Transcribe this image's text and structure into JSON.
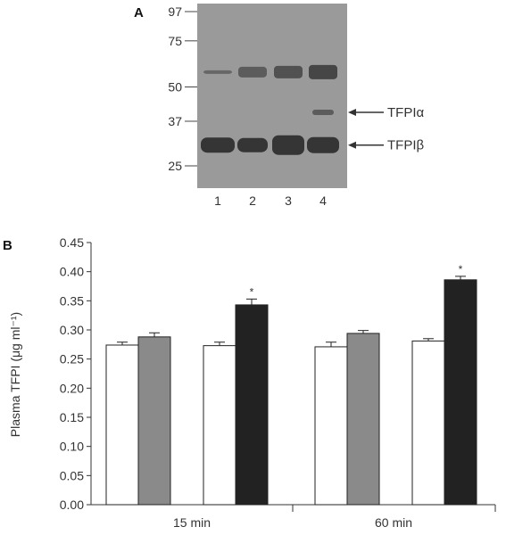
{
  "panel_a": {
    "label": "A",
    "mw_markers": [
      {
        "label": "97",
        "kda": 97
      },
      {
        "label": "75",
        "kda": 75
      },
      {
        "label": "50",
        "kda": 50
      },
      {
        "label": "37",
        "kda": 37
      },
      {
        "label": "25",
        "kda": 25
      }
    ],
    "lanes": [
      "1",
      "2",
      "3",
      "4"
    ],
    "band_labels": {
      "alpha": "TFPIα",
      "beta": "TFPIβ"
    },
    "colors": {
      "blot_bg": "#9a9a9a",
      "band": "#2a2a2a",
      "arrow": "#333333"
    }
  },
  "chart_data": {
    "type": "bar",
    "panel_label": "B",
    "title": "",
    "xlabel": "",
    "ylabel": "Plasma TFPI (μg ml⁻¹)",
    "ylim": [
      0,
      0.45
    ],
    "yticks": [
      "0.00",
      "0.05",
      "0.10",
      "0.15",
      "0.20",
      "0.25",
      "0.30",
      "0.35",
      "0.40",
      "0.45"
    ],
    "categories": [
      "15 min",
      "60 min"
    ],
    "grid": false,
    "series": [
      {
        "color": "#ffffff",
        "values": [
          0.274,
          0.271
        ],
        "errors": [
          0.005,
          0.008
        ]
      },
      {
        "color": "#8a8a8a",
        "values": [
          0.288,
          0.294
        ],
        "errors": [
          0.007,
          0.005
        ]
      },
      {
        "color": "#ffffff",
        "values": [
          0.273,
          0.281
        ],
        "errors": [
          0.006,
          0.004
        ]
      },
      {
        "color": "#222222",
        "values": [
          0.343,
          0.386
        ],
        "errors": [
          0.01,
          0.006
        ]
      }
    ],
    "significance": [
      {
        "category": 0,
        "series": 3,
        "mark": "*"
      },
      {
        "category": 1,
        "series": 3,
        "mark": "*"
      }
    ]
  }
}
